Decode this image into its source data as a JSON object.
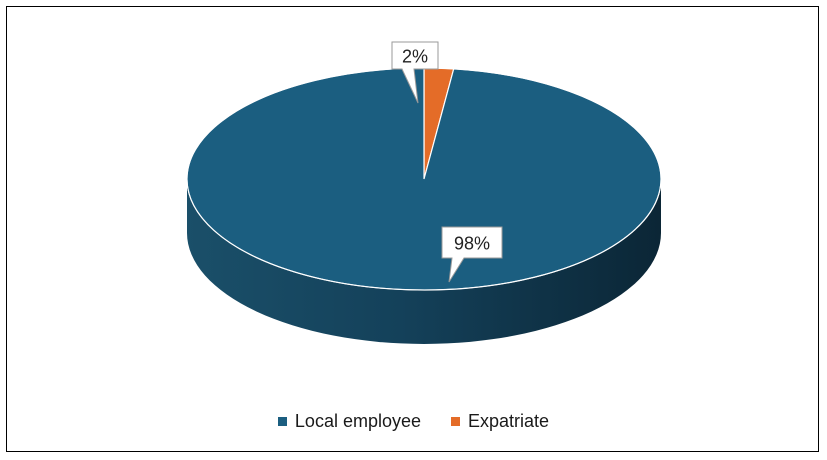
{
  "chart_data": {
    "type": "pie",
    "categories": [
      "Local employee",
      "Expatriate"
    ],
    "values": [
      98,
      2
    ],
    "data_labels": [
      "98%",
      "2%"
    ],
    "colors": [
      "#1b5e80",
      "#e46c28"
    ],
    "legend_position": "bottom",
    "style": "3d"
  }
}
